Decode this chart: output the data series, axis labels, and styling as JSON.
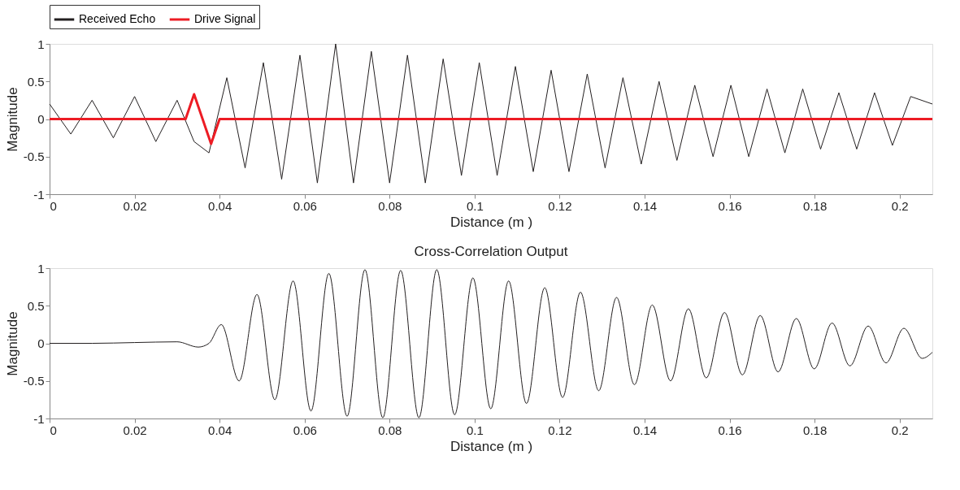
{
  "chart_data": [
    {
      "type": "line",
      "legend": "top",
      "xlabel": "Distance (m )",
      "ylabel": "Magnitude",
      "xlim": [
        0,
        0.2077
      ],
      "ylim": [
        -1,
        1
      ],
      "xticks": [
        0,
        0.02,
        0.04,
        0.06,
        0.08,
        0.1,
        0.12,
        0.14,
        0.16,
        0.18,
        0.2
      ],
      "yticks": [
        -1,
        -0.5,
        0,
        0.5,
        1
      ],
      "grid": false,
      "series": [
        {
          "name": "Received Echo",
          "color": "#231f20",
          "x": [
            0,
            0.005,
            0.01,
            0.015,
            0.02,
            0.025,
            0.03,
            0.034,
            0.0375,
            0.0417,
            0.046,
            0.0503,
            0.0546,
            0.0589,
            0.063,
            0.0673,
            0.0715,
            0.0757,
            0.08,
            0.0842,
            0.0884,
            0.0926,
            0.0969,
            0.1011,
            0.1053,
            0.1096,
            0.1138,
            0.118,
            0.1222,
            0.1265,
            0.1307,
            0.1349,
            0.1392,
            0.1434,
            0.1476,
            0.1518,
            0.1561,
            0.1603,
            0.1645,
            0.1688,
            0.173,
            0.1772,
            0.1814,
            0.1857,
            0.1899,
            0.1941,
            0.1983,
            0.2026,
            0.2077
          ],
          "values": [
            0.2,
            -0.2,
            0.25,
            -0.25,
            0.3,
            -0.3,
            0.25,
            -0.3,
            -0.45,
            0.55,
            -0.65,
            0.75,
            -0.8,
            0.85,
            -0.85,
            1.0,
            -0.85,
            0.9,
            -0.85,
            0.85,
            -0.85,
            0.8,
            -0.75,
            0.75,
            -0.75,
            0.7,
            -0.7,
            0.65,
            -0.7,
            0.6,
            -0.65,
            0.55,
            -0.6,
            0.5,
            -0.55,
            0.45,
            -0.5,
            0.45,
            -0.5,
            0.4,
            -0.45,
            0.4,
            -0.4,
            0.35,
            -0.4,
            0.35,
            -0.35,
            0.3,
            0.2
          ]
        },
        {
          "name": "Drive Signal",
          "color": "#ed1c24",
          "x": [
            0,
            0.032,
            0.034,
            0.036,
            0.038,
            0.04,
            0.2077
          ],
          "values": [
            0,
            0,
            0.33,
            0,
            -0.33,
            0,
            0
          ]
        }
      ]
    },
    {
      "type": "line",
      "title": "Cross-Correlation Output",
      "xlabel": "Distance (m )",
      "ylabel": "Magnitude",
      "xlim": [
        0,
        0.2077
      ],
      "ylim": [
        -1,
        1
      ],
      "xticks": [
        0,
        0.02,
        0.04,
        0.06,
        0.08,
        0.1,
        0.12,
        0.14,
        0.16,
        0.18,
        0.2
      ],
      "yticks": [
        -1,
        -0.5,
        0,
        0.5,
        1
      ],
      "grid": false,
      "series": [
        {
          "color": "#231f20",
          "x": [
            0,
            0.01,
            0.02,
            0.03,
            0.035,
            0.0375,
            0.0404,
            0.0446,
            0.0488,
            0.053,
            0.0573,
            0.0615,
            0.0657,
            0.07,
            0.0742,
            0.0784,
            0.0826,
            0.0869,
            0.0911,
            0.0953,
            0.0996,
            0.1038,
            0.108,
            0.1122,
            0.1165,
            0.1207,
            0.1249,
            0.1292,
            0.1334,
            0.1376,
            0.1418,
            0.1461,
            0.1503,
            0.1545,
            0.1588,
            0.163,
            0.1672,
            0.1714,
            0.1757,
            0.1799,
            0.1841,
            0.1883,
            0.1926,
            0.1968,
            0.201,
            0.2053,
            0.2077
          ],
          "values": [
            0,
            0,
            0.01,
            0.02,
            -0.05,
            0,
            0.25,
            -0.5,
            0.65,
            -0.75,
            0.83,
            -0.9,
            0.93,
            -0.97,
            0.98,
            -0.99,
            0.97,
            -0.99,
            0.98,
            -0.95,
            0.87,
            -0.87,
            0.83,
            -0.8,
            0.74,
            -0.72,
            0.68,
            -0.63,
            0.61,
            -0.55,
            0.51,
            -0.5,
            0.46,
            -0.46,
            0.41,
            -0.42,
            0.37,
            -0.38,
            0.33,
            -0.34,
            0.27,
            -0.3,
            0.23,
            -0.26,
            0.2,
            -0.2,
            -0.12
          ]
        }
      ]
    }
  ]
}
